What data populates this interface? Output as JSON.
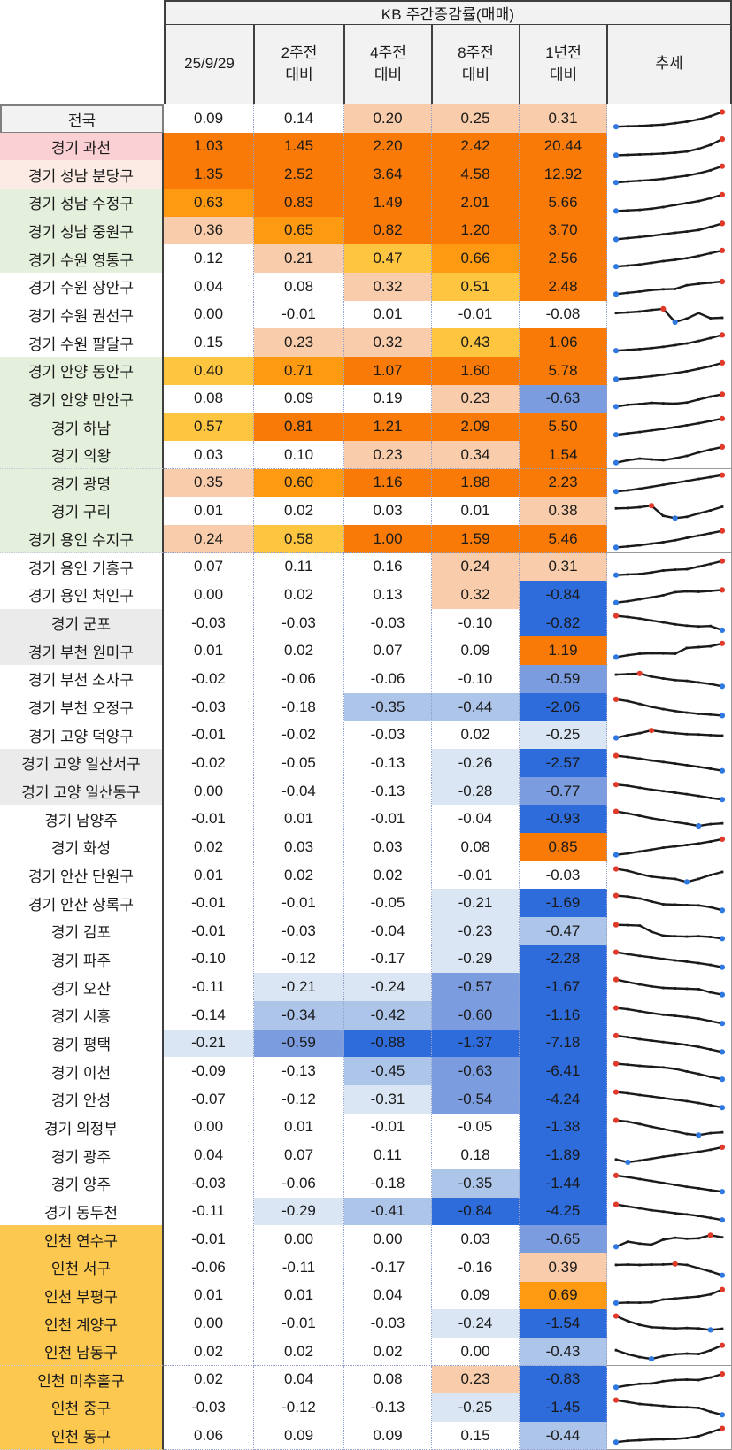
{
  "header": {
    "group_title": "KB 주간증감률(매매)",
    "columns": [
      {
        "line1": "25/9/29",
        "line2": ""
      },
      {
        "line1": "2주전",
        "line2": "대비"
      },
      {
        "line1": "4주전",
        "line2": "대비"
      },
      {
        "line1": "8주전",
        "line2": "대비"
      },
      {
        "line1": "1년전",
        "line2": "대비"
      },
      {
        "line1": "추세",
        "line2": ""
      }
    ]
  },
  "heatmap_scale": {
    "positive": [
      {
        "min": 0.8,
        "color": "#f97a06"
      },
      {
        "min": 0.59,
        "color": "#fd9a12"
      },
      {
        "min": 0.395,
        "color": "#fec640"
      },
      {
        "min": 0.195,
        "color": "#f9cdab"
      }
    ],
    "negative": [
      {
        "max": -0.8,
        "color": "#2e6bdb"
      },
      {
        "max": -0.5,
        "color": "#7b9cdf"
      },
      {
        "max": -0.33,
        "color": "#aec5ea"
      },
      {
        "max": -0.195,
        "color": "#dbe6f5"
      }
    ],
    "neutral": "#ffffff"
  },
  "row_group_colors": {
    "national": "#f2f2f2",
    "pink": "#fbd0d4",
    "lightpink": "#fcebe4",
    "green": "#e4efdc",
    "white": "#ffffff",
    "gray": "#ebebeb",
    "amber": "#fdc84f"
  },
  "sparkline_style": {
    "line_color": "#1a1a1a",
    "min_marker_color": "#2e78e0",
    "max_marker_color": "#e03a2a"
  },
  "rows": [
    {
      "region": "전국",
      "group": "national",
      "values": [
        0.09,
        0.14,
        0.2,
        0.25,
        0.31
      ],
      "trend": [
        0.06,
        0.08,
        0.1,
        0.13,
        0.17,
        0.24,
        0.32,
        0.44,
        0.6,
        0.82
      ]
    },
    {
      "region": "경기 과천",
      "group": "pink",
      "values": [
        1.03,
        1.45,
        2.2,
        2.42,
        20.44
      ],
      "trend": [
        0.05,
        0.07,
        0.09,
        0.11,
        0.14,
        0.18,
        0.24,
        0.38,
        0.58,
        0.88
      ]
    },
    {
      "region": "경기 성남 분당구",
      "group": "lightpink",
      "values": [
        1.35,
        2.52,
        3.64,
        4.58,
        12.92
      ],
      "trend": [
        0.06,
        0.11,
        0.15,
        0.19,
        0.25,
        0.33,
        0.41,
        0.53,
        0.69,
        0.9
      ]
    },
    {
      "region": "경기 성남 수정구",
      "group": "green",
      "values": [
        0.63,
        0.83,
        1.49,
        2.01,
        5.66
      ],
      "trend": [
        0.05,
        0.08,
        0.11,
        0.17,
        0.25,
        0.36,
        0.46,
        0.56,
        0.71,
        0.89
      ]
    },
    {
      "region": "경기 성남 중원구",
      "group": "green",
      "values": [
        0.36,
        0.65,
        0.82,
        1.2,
        3.7
      ],
      "trend": [
        0.05,
        0.11,
        0.17,
        0.23,
        0.31,
        0.39,
        0.45,
        0.53,
        0.69,
        0.87
      ]
    },
    {
      "region": "경기 수원 영통구",
      "group": "green",
      "values": [
        0.12,
        0.21,
        0.47,
        0.66,
        2.56
      ],
      "trend": [
        0.06,
        0.11,
        0.17,
        0.25,
        0.34,
        0.41,
        0.49,
        0.61,
        0.75,
        0.89
      ]
    },
    {
      "region": "경기 수원 장안구",
      "group": "white",
      "values": [
        0.04,
        0.08,
        0.32,
        0.51,
        2.48
      ],
      "trend": [
        0.1,
        0.17,
        0.23,
        0.31,
        0.35,
        0.37,
        0.56,
        0.63,
        0.69,
        0.75
      ]
    },
    {
      "region": "경기 수원 권선구",
      "group": "white",
      "values": [
        0.0,
        -0.01,
        0.01,
        -0.01,
        -0.08
      ],
      "trend": [
        0.58,
        0.62,
        0.66,
        0.74,
        0.8,
        0.12,
        0.3,
        0.58,
        0.32,
        0.34
      ]
    },
    {
      "region": "경기 수원 팔달구",
      "group": "white",
      "values": [
        0.15,
        0.23,
        0.32,
        0.43,
        1.06
      ],
      "trend": [
        0.06,
        0.1,
        0.14,
        0.19,
        0.26,
        0.34,
        0.43,
        0.56,
        0.71,
        0.87
      ]
    },
    {
      "region": "경기 안양 동안구",
      "group": "green",
      "values": [
        0.4,
        0.71,
        1.07,
        1.6,
        5.78
      ],
      "trend": [
        0.05,
        0.09,
        0.14,
        0.2,
        0.28,
        0.36,
        0.46,
        0.58,
        0.72,
        0.89
      ]
    },
    {
      "region": "경기 안양 만안구",
      "group": "green",
      "values": [
        0.08,
        0.09,
        0.19,
        0.23,
        -0.63
      ],
      "trend": [
        0.1,
        0.19,
        0.23,
        0.29,
        0.27,
        0.25,
        0.31,
        0.46,
        0.61,
        0.73
      ]
    },
    {
      "region": "경기 하남",
      "group": "green",
      "values": [
        0.57,
        0.81,
        1.21,
        2.09,
        5.5
      ],
      "trend": [
        0.06,
        0.13,
        0.2,
        0.28,
        0.36,
        0.45,
        0.55,
        0.65,
        0.77,
        0.89
      ]
    },
    {
      "region": "경기 의왕",
      "group": "green",
      "values": [
        0.03,
        0.1,
        0.23,
        0.34,
        1.54
      ],
      "trend": [
        0.08,
        0.21,
        0.29,
        0.25,
        0.21,
        0.31,
        0.43,
        0.61,
        0.76,
        0.89
      ]
    },
    {
      "region": "경기 광명",
      "group": "green",
      "values": [
        0.35,
        0.6,
        1.16,
        1.88,
        2.23
      ],
      "trend": [
        0.06,
        0.12,
        0.2,
        0.3,
        0.4,
        0.5,
        0.6,
        0.7,
        0.8,
        0.9
      ]
    },
    {
      "region": "경기 구리",
      "group": "green",
      "values": [
        0.01,
        0.02,
        0.03,
        0.01,
        0.38
      ],
      "trend": [
        0.6,
        0.62,
        0.66,
        0.74,
        0.22,
        0.1,
        0.17,
        0.34,
        0.5,
        0.68
      ]
    },
    {
      "region": "경기 용인 수지구",
      "group": "green",
      "values": [
        0.24,
        0.58,
        1.0,
        1.59,
        5.46
      ],
      "trend": [
        0.05,
        0.1,
        0.16,
        0.24,
        0.32,
        0.42,
        0.54,
        0.66,
        0.78,
        0.9
      ]
    },
    {
      "region": "경기 용인 기흥구",
      "group": "white",
      "values": [
        0.07,
        0.11,
        0.16,
        0.24,
        0.31
      ],
      "trend": [
        0.08,
        0.12,
        0.14,
        0.22,
        0.32,
        0.36,
        0.38,
        0.52,
        0.66,
        0.81
      ]
    },
    {
      "region": "경기 용인 처인구",
      "group": "white",
      "values": [
        0.0,
        0.02,
        0.13,
        0.32,
        -0.84
      ],
      "trend": [
        0.08,
        0.15,
        0.25,
        0.35,
        0.46,
        0.62,
        0.66,
        0.64,
        0.68,
        0.73
      ]
    },
    {
      "region": "경기 군포",
      "group": "gray",
      "values": [
        -0.03,
        -0.03,
        -0.03,
        -0.1,
        -0.82
      ],
      "trend": [
        0.86,
        0.8,
        0.72,
        0.62,
        0.52,
        0.42,
        0.35,
        0.31,
        0.33,
        0.12
      ]
    },
    {
      "region": "경기 부천 원미구",
      "group": "gray",
      "values": [
        0.01,
        0.02,
        0.07,
        0.09,
        1.19
      ],
      "trend": [
        0.14,
        0.24,
        0.32,
        0.34,
        0.33,
        0.32,
        0.62,
        0.66,
        0.7,
        0.85
      ]
    },
    {
      "region": "경기 부천 소사구",
      "group": "white",
      "values": [
        -0.02,
        -0.06,
        -0.06,
        -0.1,
        -0.59
      ],
      "trend": [
        0.7,
        0.73,
        0.76,
        0.6,
        0.5,
        0.42,
        0.38,
        0.3,
        0.22,
        0.1
      ]
    },
    {
      "region": "경기 부천 오정구",
      "group": "white",
      "values": [
        -0.03,
        -0.18,
        -0.35,
        -0.44,
        -2.06
      ],
      "trend": [
        0.89,
        0.8,
        0.65,
        0.5,
        0.38,
        0.28,
        0.2,
        0.14,
        0.1,
        0.05
      ]
    },
    {
      "region": "경기 고양 덕양구",
      "group": "white",
      "values": [
        -0.01,
        -0.02,
        -0.03,
        0.02,
        -0.25
      ],
      "trend": [
        0.32,
        0.46,
        0.56,
        0.7,
        0.62,
        0.56,
        0.51,
        0.49,
        0.46,
        0.43
      ]
    },
    {
      "region": "경기 고양 일산서구",
      "group": "gray",
      "values": [
        -0.02,
        -0.05,
        -0.13,
        -0.26,
        -2.57
      ],
      "trend": [
        0.86,
        0.79,
        0.71,
        0.61,
        0.53,
        0.45,
        0.37,
        0.28,
        0.18,
        0.08
      ]
    },
    {
      "region": "경기 고양 일산동구",
      "group": "gray",
      "values": [
        0.0,
        -0.04,
        -0.13,
        -0.28,
        -0.77
      ],
      "trend": [
        0.83,
        0.77,
        0.67,
        0.57,
        0.49,
        0.41,
        0.33,
        0.24,
        0.14,
        0.06
      ]
    },
    {
      "region": "경기 남양주",
      "group": "white",
      "values": [
        -0.01,
        0.01,
        -0.01,
        -0.04,
        -0.93
      ],
      "trend": [
        0.86,
        0.76,
        0.63,
        0.51,
        0.41,
        0.31,
        0.22,
        0.11,
        0.2,
        0.24
      ]
    },
    {
      "region": "경기 화성",
      "group": "white",
      "values": [
        0.02,
        0.03,
        0.03,
        0.08,
        0.85
      ],
      "trend": [
        0.08,
        0.15,
        0.25,
        0.35,
        0.45,
        0.52,
        0.59,
        0.67,
        0.77,
        0.89
      ]
    },
    {
      "region": "경기 안산 단원구",
      "group": "white",
      "values": [
        0.01,
        0.02,
        0.02,
        -0.01,
        -0.03
      ],
      "trend": [
        0.82,
        0.72,
        0.55,
        0.42,
        0.35,
        0.3,
        0.14,
        0.3,
        0.5,
        0.66
      ]
    },
    {
      "region": "경기 안산 상록구",
      "group": "white",
      "values": [
        -0.01,
        -0.01,
        -0.05,
        -0.21,
        -1.69
      ],
      "trend": [
        0.86,
        0.81,
        0.71,
        0.55,
        0.41,
        0.39,
        0.37,
        0.35,
        0.26,
        0.1
      ]
    },
    {
      "region": "경기 김포",
      "group": "white",
      "values": [
        -0.01,
        -0.03,
        -0.04,
        -0.23,
        -0.47
      ],
      "trend": [
        0.81,
        0.79,
        0.77,
        0.45,
        0.25,
        0.22,
        0.2,
        0.22,
        0.18,
        0.1
      ]
    },
    {
      "region": "경기 파주",
      "group": "white",
      "values": [
        -0.1,
        -0.12,
        -0.17,
        -0.29,
        -2.28
      ],
      "trend": [
        0.86,
        0.76,
        0.67,
        0.59,
        0.51,
        0.43,
        0.37,
        0.29,
        0.2,
        0.08
      ]
    },
    {
      "region": "경기 오산",
      "group": "white",
      "values": [
        -0.11,
        -0.21,
        -0.24,
        -0.57,
        -1.67
      ],
      "trend": [
        0.86,
        0.73,
        0.61,
        0.51,
        0.43,
        0.41,
        0.39,
        0.37,
        0.2,
        0.08
      ]
    },
    {
      "region": "경기 시흥",
      "group": "white",
      "values": [
        -0.14,
        -0.34,
        -0.42,
        -0.6,
        -1.16
      ],
      "trend": [
        0.86,
        0.79,
        0.69,
        0.59,
        0.51,
        0.45,
        0.39,
        0.31,
        0.18,
        0.06
      ]
    },
    {
      "region": "경기 평택",
      "group": "white",
      "values": [
        -0.21,
        -0.59,
        -0.88,
        -1.37,
        -7.18
      ],
      "trend": [
        0.89,
        0.81,
        0.71,
        0.63,
        0.56,
        0.49,
        0.41,
        0.31,
        0.18,
        0.05
      ]
    },
    {
      "region": "경기 이천",
      "group": "white",
      "values": [
        -0.09,
        -0.13,
        -0.45,
        -0.63,
        -6.41
      ],
      "trend": [
        0.86,
        0.81,
        0.75,
        0.71,
        0.67,
        0.59,
        0.46,
        0.33,
        0.18,
        0.06
      ]
    },
    {
      "region": "경기 안성",
      "group": "white",
      "values": [
        -0.07,
        -0.12,
        -0.31,
        -0.54,
        -4.24
      ],
      "trend": [
        0.86,
        0.79,
        0.71,
        0.63,
        0.55,
        0.47,
        0.39,
        0.29,
        0.18,
        0.06
      ]
    },
    {
      "region": "경기 의정부",
      "group": "white",
      "values": [
        0.0,
        0.01,
        -0.01,
        -0.05,
        -1.38
      ],
      "trend": [
        0.86,
        0.79,
        0.67,
        0.53,
        0.41,
        0.29,
        0.16,
        0.1,
        0.2,
        0.24
      ]
    },
    {
      "region": "경기 광주",
      "group": "white",
      "values": [
        0.04,
        0.07,
        0.11,
        0.18,
        -1.89
      ],
      "trend": [
        0.26,
        0.12,
        0.2,
        0.3,
        0.4,
        0.48,
        0.57,
        0.65,
        0.76,
        0.89
      ]
    },
    {
      "region": "경기 양주",
      "group": "white",
      "values": [
        -0.03,
        -0.06,
        -0.18,
        -0.35,
        -1.44
      ],
      "trend": [
        0.89,
        0.81,
        0.71,
        0.61,
        0.51,
        0.41,
        0.31,
        0.23,
        0.14,
        0.06
      ]
    },
    {
      "region": "경기 동두천",
      "group": "white",
      "values": [
        -0.11,
        -0.29,
        -0.41,
        -0.84,
        -4.25
      ],
      "trend": [
        0.86,
        0.76,
        0.66,
        0.56,
        0.49,
        0.41,
        0.35,
        0.27,
        0.17,
        0.06
      ]
    },
    {
      "region": "인천 연수구",
      "group": "amber",
      "values": [
        -0.01,
        0.0,
        0.0,
        0.03,
        -0.65
      ],
      "trend": [
        0.1,
        0.36,
        0.26,
        0.21,
        0.46,
        0.56,
        0.51,
        0.53,
        0.69,
        0.58
      ]
    },
    {
      "region": "인천 서구",
      "group": "amber",
      "values": [
        -0.06,
        -0.11,
        -0.17,
        -0.16,
        0.39
      ],
      "trend": [
        0.62,
        0.63,
        0.62,
        0.63,
        0.64,
        0.67,
        0.62,
        0.45,
        0.28,
        0.08
      ]
    },
    {
      "region": "인천 부평구",
      "group": "amber",
      "values": [
        0.01,
        0.01,
        0.04,
        0.09,
        0.69
      ],
      "trend": [
        0.12,
        0.14,
        0.13,
        0.15,
        0.3,
        0.35,
        0.4,
        0.45,
        0.56,
        0.81
      ]
    },
    {
      "region": "인천 계양구",
      "group": "amber",
      "values": [
        0.0,
        -0.01,
        -0.03,
        -0.24,
        -1.54
      ],
      "trend": [
        0.86,
        0.6,
        0.4,
        0.28,
        0.25,
        0.22,
        0.24,
        0.22,
        0.14,
        0.2
      ]
    },
    {
      "region": "인천 남동구",
      "group": "amber",
      "values": [
        0.02,
        0.02,
        0.02,
        0.0,
        -0.43
      ],
      "trend": [
        0.56,
        0.35,
        0.2,
        0.11,
        0.25,
        0.35,
        0.38,
        0.36,
        0.55,
        0.81
      ]
    },
    {
      "region": "인천 미추홀구",
      "group": "amber",
      "values": [
        0.02,
        0.04,
        0.08,
        0.23,
        -0.83
      ],
      "trend": [
        0.1,
        0.2,
        0.28,
        0.3,
        0.42,
        0.48,
        0.5,
        0.48,
        0.61,
        0.79
      ]
    },
    {
      "region": "인천 중구",
      "group": "amber",
      "values": [
        -0.03,
        -0.12,
        -0.13,
        -0.25,
        -1.45
      ],
      "trend": [
        0.86,
        0.76,
        0.66,
        0.61,
        0.56,
        0.51,
        0.49,
        0.46,
        0.26,
        0.1
      ]
    },
    {
      "region": "인천 동구",
      "group": "amber",
      "values": [
        0.06,
        0.09,
        0.09,
        0.15,
        -0.44
      ],
      "trend": [
        0.15,
        0.22,
        0.25,
        0.28,
        0.3,
        0.32,
        0.36,
        0.46,
        0.66,
        0.86
      ]
    }
  ]
}
